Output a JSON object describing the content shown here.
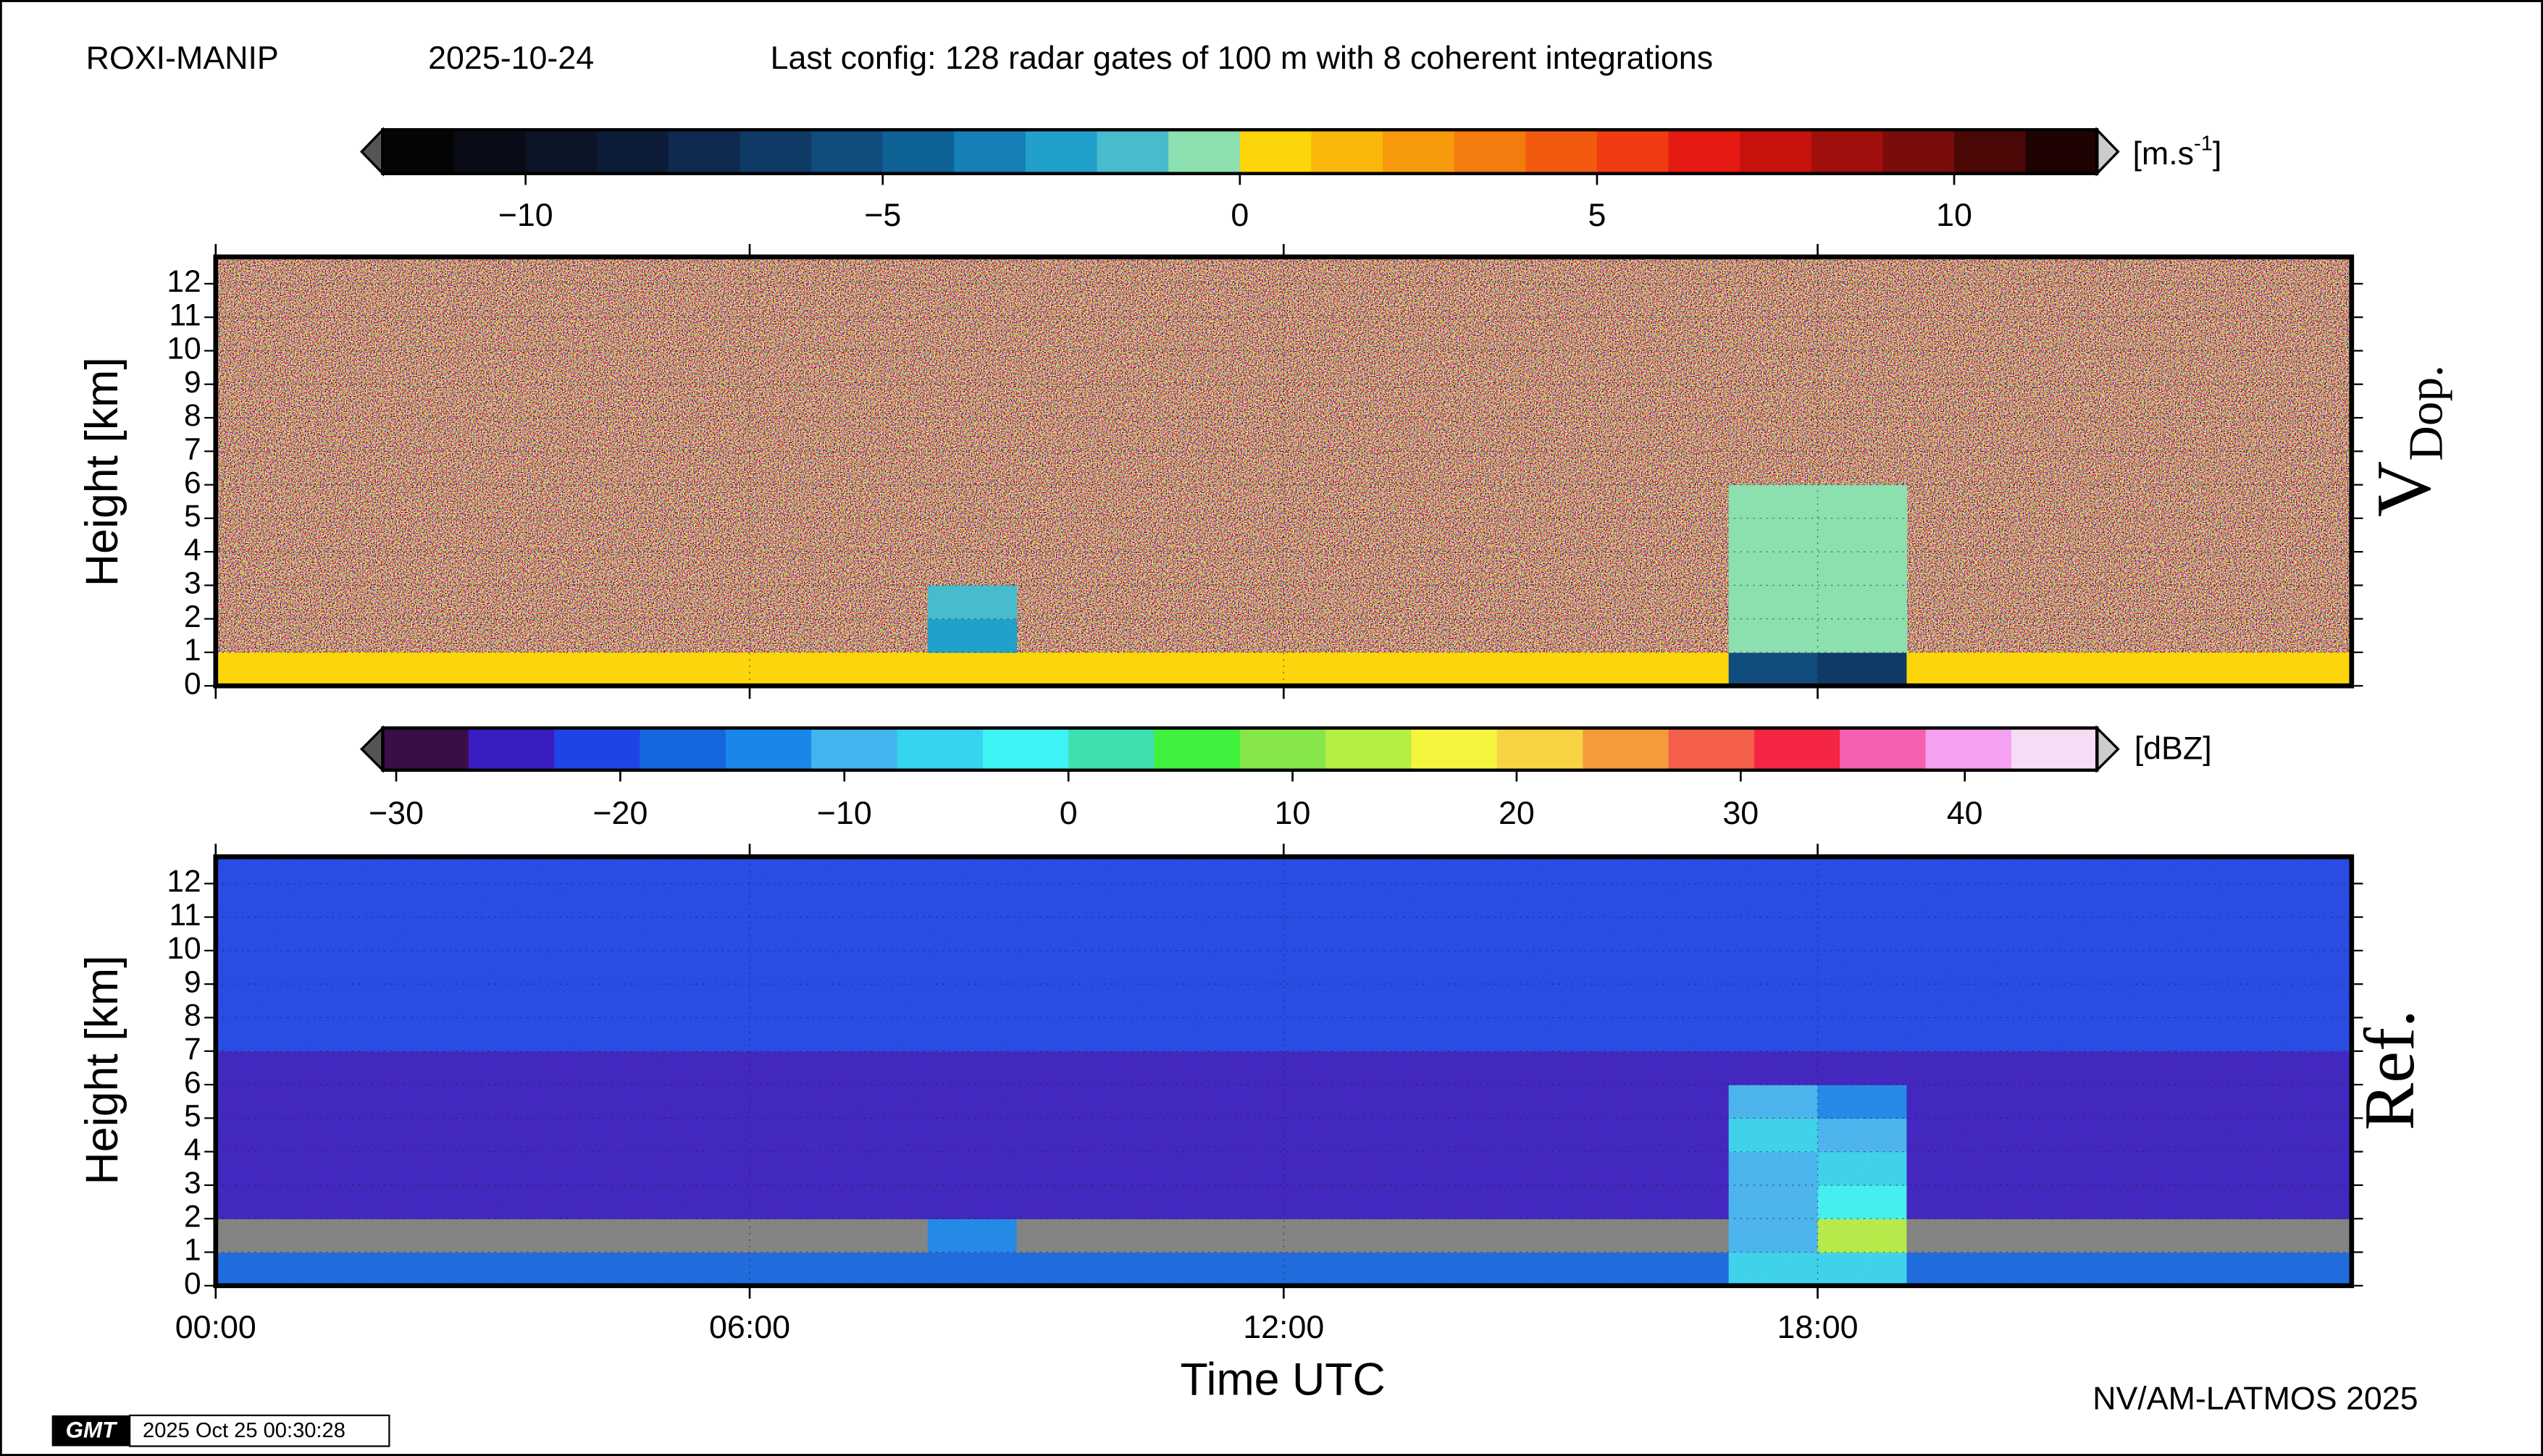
{
  "header": {
    "station": "ROXI-MANIP",
    "date": "2025-10-24",
    "config": "Last config: 128 radar gates of 100 m with 8 coherent integrations"
  },
  "footer": {
    "credit": "NV/AM-LATMOS 2025",
    "logo": "GMT",
    "timestamp": "2025 Oct 25 00:30:28"
  },
  "chart_data": [
    {
      "type": "heatmap",
      "label": "V",
      "label_sub": "Dop.",
      "ylabel": "Height [km]",
      "xlim": [
        0,
        24
      ],
      "ylim": [
        0,
        12.8
      ],
      "yticks": [
        0,
        1,
        2,
        3,
        4,
        5,
        6,
        7,
        8,
        9,
        10,
        11,
        12
      ],
      "grid": true,
      "noise_background": true,
      "x_edges": [
        0,
        1,
        2,
        3,
        4,
        5,
        6,
        7,
        8,
        9,
        10,
        11,
        12,
        13,
        14,
        15,
        16,
        17,
        18,
        19,
        20,
        21,
        22,
        23,
        24
      ],
      "y_edges": [
        0,
        1,
        2,
        3,
        4,
        5,
        6,
        7,
        8,
        9,
        10,
        11,
        12,
        12.8
      ],
      "z": [
        [
          0.5,
          0.5,
          0.5,
          0.5,
          0.5,
          0.5,
          0.5,
          0.5,
          0.5,
          0.5,
          0.5,
          0.5,
          0.5,
          0.5,
          0.5,
          0.5,
          0.5,
          -6,
          -7,
          0.5,
          0.5,
          0.5,
          0.5,
          0.5
        ],
        [
          null,
          null,
          null,
          null,
          null,
          null,
          null,
          null,
          -3,
          null,
          null,
          null,
          null,
          null,
          null,
          null,
          null,
          -0.8,
          -0.8,
          null,
          null,
          null,
          null,
          null
        ],
        [
          null,
          null,
          null,
          null,
          null,
          null,
          null,
          null,
          -2,
          null,
          null,
          null,
          null,
          null,
          null,
          null,
          null,
          -0.8,
          -0.8,
          null,
          null,
          null,
          null,
          null
        ],
        [
          null,
          null,
          null,
          null,
          null,
          null,
          null,
          null,
          null,
          null,
          null,
          null,
          null,
          null,
          null,
          null,
          null,
          -0.8,
          -0.8,
          null,
          null,
          null,
          null,
          null
        ],
        [
          null,
          null,
          null,
          null,
          null,
          null,
          null,
          null,
          null,
          null,
          null,
          null,
          null,
          null,
          null,
          null,
          null,
          -0.8,
          -0.8,
          null,
          null,
          null,
          null,
          null
        ],
        [
          null,
          null,
          null,
          null,
          null,
          null,
          null,
          null,
          null,
          null,
          null,
          null,
          null,
          null,
          null,
          null,
          null,
          -0.8,
          -0.8,
          null,
          null,
          null,
          null,
          null
        ],
        [
          null,
          null,
          null,
          null,
          null,
          null,
          null,
          null,
          null,
          null,
          null,
          null,
          null,
          null,
          null,
          null,
          null,
          null,
          null,
          null,
          null,
          null,
          null,
          null
        ],
        [
          null,
          null,
          null,
          null,
          null,
          null,
          null,
          null,
          null,
          null,
          null,
          null,
          null,
          null,
          null,
          null,
          null,
          null,
          null,
          null,
          null,
          null,
          null,
          null
        ],
        [
          null,
          null,
          null,
          null,
          null,
          null,
          null,
          null,
          null,
          null,
          null,
          null,
          null,
          null,
          null,
          null,
          null,
          null,
          null,
          null,
          null,
          null,
          null,
          null
        ],
        [
          null,
          null,
          null,
          null,
          null,
          null,
          null,
          null,
          null,
          null,
          null,
          null,
          null,
          null,
          null,
          null,
          null,
          null,
          null,
          null,
          null,
          null,
          null,
          null
        ],
        [
          null,
          null,
          null,
          null,
          null,
          null,
          null,
          null,
          null,
          null,
          null,
          null,
          null,
          null,
          null,
          null,
          null,
          null,
          null,
          null,
          null,
          null,
          null,
          null
        ],
        [
          null,
          null,
          null,
          null,
          null,
          null,
          null,
          null,
          null,
          null,
          null,
          null,
          null,
          null,
          null,
          null,
          null,
          null,
          null,
          null,
          null,
          null,
          null,
          null
        ],
        [
          null,
          null,
          null,
          null,
          null,
          null,
          null,
          null,
          null,
          null,
          null,
          null,
          null,
          null,
          null,
          null,
          null,
          null,
          null,
          null,
          null,
          null,
          null,
          null
        ]
      ],
      "colorbar": {
        "lim": [
          -12,
          12
        ],
        "unit": "[m.s",
        "unit_sup": "-1",
        "unit_end": "]",
        "ticks": [
          {
            "value": -10,
            "label": "−10"
          },
          {
            "value": -5,
            "label": "−5"
          },
          0,
          5,
          10
        ],
        "colors": [
          "#050505",
          "#0a0c18",
          "#0c1428",
          "#0d1c38",
          "#0f2a4e",
          "#103a66",
          "#104c7e",
          "#0f6296",
          "#1680b6",
          "#22a0cc",
          "#48bccc",
          "#8ce0b0",
          "#fcd50a",
          "#f9b80a",
          "#f79a0c",
          "#f47b0e",
          "#f25a10",
          "#ef3a12",
          "#e51a12",
          "#c8120e",
          "#a00f0c",
          "#7a0c0a",
          "#4a0806",
          "#1e0302"
        ]
      }
    },
    {
      "type": "heatmap",
      "label": "Ref.",
      "ylabel": "Height [km]",
      "xlabel": "Time UTC",
      "xlim": [
        0,
        24
      ],
      "ylim": [
        0,
        12.8
      ],
      "yticks": [
        0,
        1,
        2,
        3,
        4,
        5,
        6,
        7,
        8,
        9,
        10,
        11,
        12
      ],
      "xticks": [
        {
          "value": 0,
          "label": "00:00"
        },
        {
          "value": 6,
          "label": "06:00"
        },
        {
          "value": 12,
          "label": "12:00"
        },
        {
          "value": 18,
          "label": "18:00"
        }
      ],
      "grid": true,
      "nan_color": "#808080",
      "x_edges": [
        0,
        1,
        2,
        3,
        4,
        5,
        6,
        7,
        8,
        9,
        10,
        11,
        12,
        13,
        14,
        15,
        16,
        17,
        18,
        19,
        20,
        21,
        22,
        23,
        24
      ],
      "y_edges": [
        0,
        1,
        2,
        3,
        4,
        5,
        6,
        7,
        8,
        9,
        10,
        11,
        12,
        12.8
      ],
      "z": [
        [
          -18,
          -18,
          -18,
          -18,
          -18,
          -18,
          -18,
          -18,
          -18,
          -18,
          -18,
          -18,
          -18,
          -18,
          -18,
          -18,
          -18,
          -5,
          -5,
          -18,
          -18,
          -18,
          -18,
          -18
        ],
        [
          null,
          null,
          null,
          null,
          null,
          null,
          null,
          null,
          -12,
          null,
          null,
          null,
          null,
          null,
          null,
          null,
          null,
          -8,
          12,
          null,
          null,
          null,
          null,
          null
        ],
        [
          -26,
          -26,
          -26,
          -26,
          -26,
          -26,
          -26,
          -26,
          -26,
          -26,
          -26,
          -26,
          -26,
          -26,
          -26,
          -26,
          -26,
          -8,
          -3,
          -26,
          -26,
          -26,
          -26,
          -26
        ],
        [
          -26,
          -26,
          -26,
          -26,
          -26,
          -26,
          -26,
          -26,
          -26,
          -26,
          -26,
          -26,
          -26,
          -26,
          -26,
          -26,
          -26,
          -8,
          -6,
          -26,
          -26,
          -26,
          -26,
          -26
        ],
        [
          -24,
          -24,
          -24,
          -24,
          -24,
          -24,
          -24,
          -24,
          -24,
          -24,
          -24,
          -24,
          -24,
          -24,
          -24,
          -24,
          -24,
          -6,
          -8,
          -24,
          -24,
          -24,
          -24,
          -24
        ],
        [
          -24,
          -24,
          -24,
          -24,
          -24,
          -24,
          -24,
          -24,
          -24,
          -24,
          -24,
          -24,
          -24,
          -24,
          -24,
          -24,
          -24,
          -10,
          -14,
          -24,
          -24,
          -24,
          -24,
          -24
        ],
        [
          -24,
          -24,
          -24,
          -24,
          -24,
          -24,
          -24,
          -24,
          -24,
          -24,
          -24,
          -24,
          -24,
          -24,
          -24,
          -24,
          -24,
          -24,
          -24,
          -24,
          -24,
          -24,
          -24,
          -24
        ],
        [
          -21,
          -21,
          -21,
          -21,
          -21,
          -21,
          -21,
          -21,
          -21,
          -21,
          -21,
          -21,
          -21,
          -21,
          -21,
          -21,
          -21,
          -21,
          -21,
          -21,
          -21,
          -21,
          -21,
          -21
        ],
        [
          -21,
          -21,
          -21,
          -21,
          -21,
          -21,
          -21,
          -21,
          -21,
          -21,
          -21,
          -21,
          -21,
          -21,
          -21,
          -21,
          -21,
          -21,
          -21,
          -21,
          -21,
          -21,
          -21,
          -21
        ],
        [
          -21,
          -21,
          -21,
          -21,
          -21,
          -21,
          -21,
          -21,
          -21,
          -21,
          -21,
          -21,
          -21,
          -21,
          -21,
          -21,
          -21,
          -21,
          -21,
          -21,
          -21,
          -21,
          -21,
          -21
        ],
        [
          -21,
          -21,
          -21,
          -21,
          -21,
          -21,
          -21,
          -21,
          -21,
          -21,
          -21,
          -21,
          -21,
          -21,
          -21,
          -21,
          -21,
          -21,
          -21,
          -21,
          -21,
          -21,
          -21,
          -21
        ],
        [
          -21,
          -21,
          -21,
          -21,
          -21,
          -21,
          -21,
          -21,
          -21,
          -21,
          -21,
          -21,
          -21,
          -21,
          -21,
          -21,
          -21,
          -21,
          -21,
          -21,
          -21,
          -21,
          -21,
          -21
        ],
        [
          -21,
          -21,
          -21,
          -21,
          -21,
          -21,
          -21,
          -21,
          -21,
          -21,
          -21,
          -21,
          -21,
          -21,
          -21,
          -21,
          -21,
          -21,
          -21,
          -21,
          -21,
          -21,
          -21,
          -21
        ]
      ],
      "colorbar": {
        "lim": [
          -30.6,
          45.9
        ],
        "unit": "[dBZ]",
        "ticks": [
          {
            "value": -30,
            "label": "−30"
          },
          {
            "value": -20,
            "label": "−20"
          },
          {
            "value": -10,
            "label": "−10"
          },
          0,
          10,
          20,
          30,
          40
        ],
        "colors": [
          "#3a0d46",
          "#3a1dc0",
          "#1f44e6",
          "#1566e0",
          "#1b86ea",
          "#44b4f0",
          "#36d4ee",
          "#3ef3f3",
          "#3ee0b0",
          "#3ef23e",
          "#86e64a",
          "#b6ee42",
          "#f4f53d",
          "#f8d444",
          "#f59b3c",
          "#f4604a",
          "#f52545",
          "#f560b0",
          "#f5a0f0",
          "#f6dcf4"
        ]
      }
    }
  ]
}
